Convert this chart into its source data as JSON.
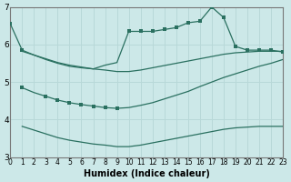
{
  "xlabel": "Humidex (Indice chaleur)",
  "bg_color": "#cce8e8",
  "grid_color": "#b8d8d8",
  "line_color": "#2a7060",
  "xlim": [
    0,
    23
  ],
  "ylim": [
    3,
    7
  ],
  "yticks": [
    3,
    4,
    5,
    6,
    7
  ],
  "xticks": [
    0,
    1,
    2,
    3,
    4,
    5,
    6,
    7,
    8,
    9,
    10,
    11,
    12,
    13,
    14,
    15,
    16,
    17,
    18,
    19,
    20,
    21,
    22,
    23
  ],
  "line1_x": [
    0,
    1,
    2,
    3,
    4,
    5,
    6,
    7,
    8,
    9,
    10,
    11,
    12,
    13,
    14,
    15,
    16,
    17,
    18,
    19,
    20,
    21,
    22,
    23
  ],
  "line1_y": [
    6.55,
    5.85,
    5.72,
    5.6,
    5.5,
    5.42,
    5.38,
    5.35,
    5.45,
    5.52,
    6.35,
    6.35,
    6.35,
    6.4,
    6.45,
    6.58,
    6.62,
    7.0,
    6.72,
    5.95,
    5.85,
    5.85,
    5.85,
    5.8
  ],
  "line1_marker_x": [
    0,
    1,
    10,
    11,
    12,
    13,
    14,
    15,
    16,
    17,
    18,
    19,
    20,
    21,
    22,
    23
  ],
  "line1_marker_y": [
    6.55,
    5.85,
    6.35,
    6.35,
    6.35,
    6.4,
    6.45,
    6.58,
    6.62,
    7.0,
    6.72,
    5.95,
    5.85,
    5.85,
    5.85,
    5.8
  ],
  "line2_x": [
    1,
    2,
    3,
    4,
    5,
    6,
    7,
    8,
    9,
    10,
    11,
    12,
    13,
    14,
    15,
    16,
    17,
    18,
    19,
    20,
    21,
    22,
    23
  ],
  "line2_y": [
    4.85,
    4.72,
    4.62,
    4.52,
    4.45,
    4.4,
    4.36,
    4.32,
    4.3,
    4.32,
    4.38,
    4.45,
    4.55,
    4.65,
    4.75,
    4.88,
    5.0,
    5.12,
    5.22,
    5.32,
    5.42,
    5.5,
    5.6
  ],
  "line2_marker_x": [
    1,
    3,
    4,
    5,
    6,
    7,
    8,
    9
  ],
  "line2_marker_y": [
    4.85,
    4.62,
    4.52,
    4.45,
    4.4,
    4.36,
    4.32,
    4.3
  ],
  "line3_upper_x": [
    1,
    2,
    3,
    4,
    5,
    6,
    7,
    8,
    9,
    10,
    11,
    12,
    13,
    14,
    15,
    16,
    17,
    18,
    19,
    20,
    21,
    22,
    23
  ],
  "line3_upper_y": [
    5.82,
    5.72,
    5.62,
    5.52,
    5.45,
    5.4,
    5.35,
    5.32,
    5.28,
    5.28,
    5.32,
    5.38,
    5.44,
    5.5,
    5.56,
    5.62,
    5.68,
    5.74,
    5.78,
    5.8,
    5.82,
    5.82,
    5.82
  ],
  "line3_lower_x": [
    1,
    2,
    3,
    4,
    5,
    6,
    7,
    8,
    9,
    10,
    11,
    12,
    13,
    14,
    15,
    16,
    17,
    18,
    19,
    20,
    21,
    22,
    23
  ],
  "line3_lower_y": [
    3.82,
    3.72,
    3.62,
    3.52,
    3.45,
    3.4,
    3.35,
    3.32,
    3.28,
    3.28,
    3.32,
    3.38,
    3.44,
    3.5,
    3.56,
    3.62,
    3.68,
    3.74,
    3.78,
    3.8,
    3.82,
    3.82,
    3.82
  ]
}
